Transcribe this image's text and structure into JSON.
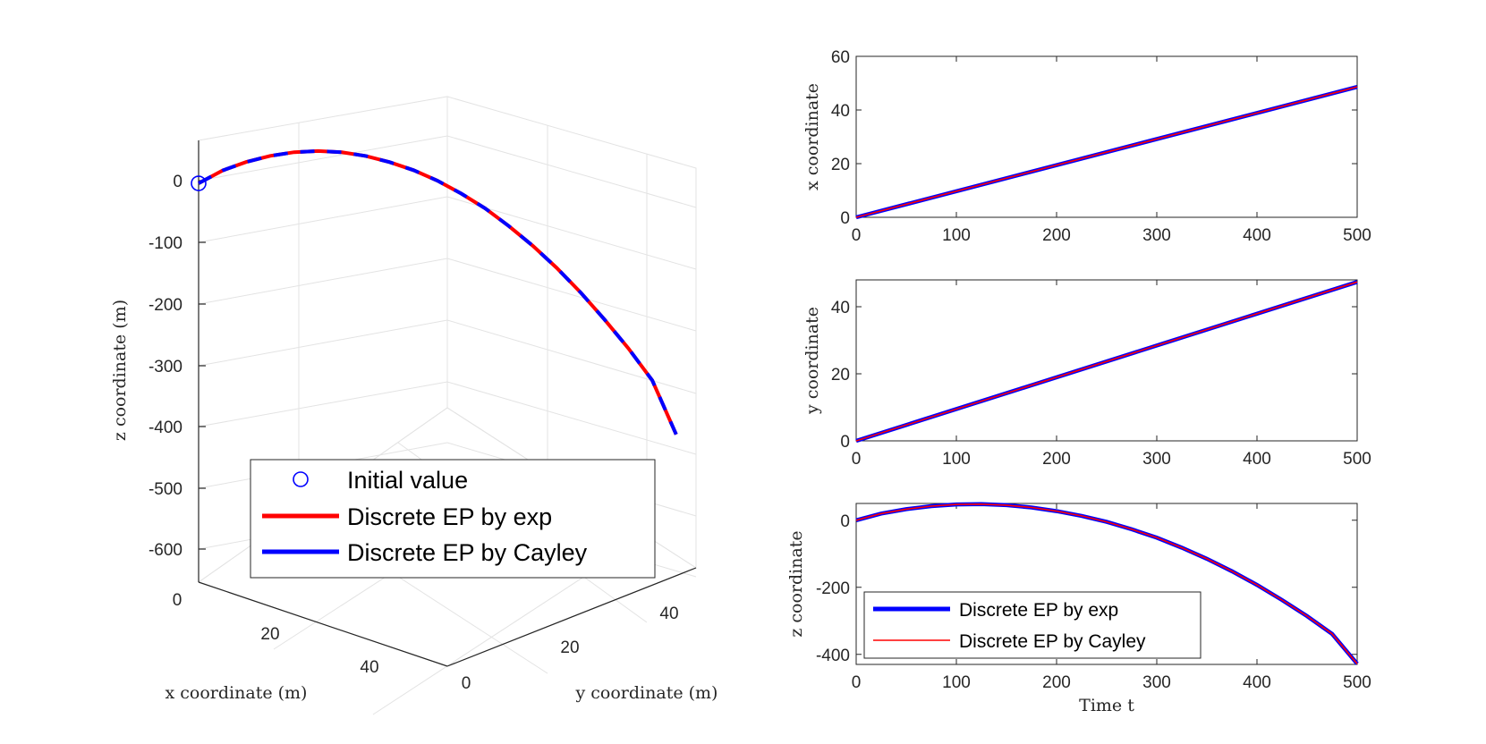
{
  "colors": {
    "exp": "#ff0000",
    "cayley": "#0000ff",
    "axis": "#262626",
    "grid": "#e3e3e3"
  },
  "chart_data": [
    {
      "type": "line3d",
      "name": "trajectory-3d",
      "xlabel": "x coordinate (m)",
      "ylabel": "y coordinate (m)",
      "zlabel": "z coordinate (m)",
      "x_ticks": [
        "0",
        "20",
        "40"
      ],
      "y_ticks": [
        "0",
        "20",
        "40"
      ],
      "z_ticks": [
        "0",
        "-100",
        "-200",
        "-300",
        "-400",
        "-500",
        "-600"
      ],
      "xlim": [
        0,
        50
      ],
      "ylim": [
        0,
        50
      ],
      "zlim": [
        -650,
        70
      ],
      "legend": {
        "placement": "lower-center",
        "entries": [
          "Initial value",
          "Discrete EP by exp",
          "Discrete EP by Cayley"
        ]
      },
      "initial_value": {
        "x": 0,
        "y": 0,
        "z": 0
      },
      "series": [
        {
          "name": "Discrete EP by exp",
          "style": "solid red"
        },
        {
          "name": "Discrete EP by Cayley",
          "style": "dashed blue"
        }
      ],
      "t": [
        0,
        25,
        50,
        75,
        100,
        125,
        150,
        175,
        200,
        225,
        250,
        275,
        300,
        325,
        350,
        375,
        400,
        425,
        450,
        475,
        500
      ],
      "x": [
        0,
        2.43,
        4.86,
        7.29,
        9.72,
        12.15,
        14.58,
        17.01,
        19.44,
        21.87,
        24.3,
        26.73,
        29.16,
        31.59,
        34.02,
        36.45,
        38.88,
        41.31,
        43.74,
        46.17,
        48.6
      ],
      "y": [
        0,
        2.37,
        4.74,
        7.11,
        9.48,
        11.85,
        14.22,
        16.59,
        18.96,
        21.33,
        23.7,
        26.07,
        28.44,
        30.81,
        33.18,
        35.55,
        37.92,
        40.29,
        42.66,
        45.03,
        47.4
      ],
      "z": [
        0,
        20,
        33,
        42,
        47,
        48,
        45,
        38,
        27,
        13,
        -5,
        -27,
        -52,
        -82,
        -115,
        -152,
        -193,
        -238,
        -286,
        -339,
        -428
      ]
    },
    {
      "type": "line",
      "name": "x-vs-time",
      "ylabel": "x coordinate",
      "xlim": [
        0,
        500
      ],
      "ylim": [
        0,
        60
      ],
      "x_ticks": [
        "0",
        "100",
        "200",
        "300",
        "400",
        "500"
      ],
      "y_ticks": [
        "0",
        "20",
        "40",
        "60"
      ],
      "series": [
        {
          "name": "Discrete EP by exp",
          "x": [
            0,
            500
          ],
          "values": [
            0,
            48.6
          ]
        },
        {
          "name": "Discrete EP by Cayley",
          "x": [
            0,
            500
          ],
          "values": [
            0,
            48.6
          ]
        }
      ]
    },
    {
      "type": "line",
      "name": "y-vs-time",
      "ylabel": "y coordinate",
      "xlim": [
        0,
        500
      ],
      "ylim": [
        0,
        48
      ],
      "x_ticks": [
        "0",
        "100",
        "200",
        "300",
        "400",
        "500"
      ],
      "y_ticks": [
        "0",
        "20",
        "40"
      ],
      "series": [
        {
          "name": "Discrete EP by exp",
          "x": [
            0,
            500
          ],
          "values": [
            0,
            47.4
          ]
        },
        {
          "name": "Discrete EP by Cayley",
          "x": [
            0,
            500
          ],
          "values": [
            0,
            47.4
          ]
        }
      ]
    },
    {
      "type": "line",
      "name": "z-vs-time",
      "xlabel": "Time t",
      "ylabel": "z coordinate",
      "xlim": [
        0,
        500
      ],
      "ylim": [
        -430,
        50
      ],
      "x_ticks": [
        "0",
        "100",
        "200",
        "300",
        "400",
        "500"
      ],
      "y_ticks": [
        "0",
        "-200",
        "-400"
      ],
      "legend": {
        "placement": "lower-left",
        "entries": [
          "Discrete EP by exp",
          "Discrete EP by Cayley"
        ]
      },
      "series": [
        {
          "name": "Discrete EP by exp",
          "x": [
            0,
            25,
            50,
            75,
            100,
            125,
            150,
            175,
            200,
            225,
            250,
            275,
            300,
            325,
            350,
            375,
            400,
            425,
            450,
            475,
            500
          ],
          "values": [
            0,
            20,
            33,
            42,
            47,
            48,
            45,
            38,
            27,
            13,
            -5,
            -27,
            -52,
            -82,
            -115,
            -152,
            -193,
            -238,
            -286,
            -339,
            -428
          ]
        },
        {
          "name": "Discrete EP by Cayley",
          "x": [
            0,
            25,
            50,
            75,
            100,
            125,
            150,
            175,
            200,
            225,
            250,
            275,
            300,
            325,
            350,
            375,
            400,
            425,
            450,
            475,
            500
          ],
          "values": [
            0,
            20,
            33,
            42,
            47,
            48,
            45,
            38,
            27,
            13,
            -5,
            -27,
            -52,
            -82,
            -115,
            -152,
            -193,
            -238,
            -286,
            -339,
            -428
          ]
        }
      ]
    }
  ]
}
